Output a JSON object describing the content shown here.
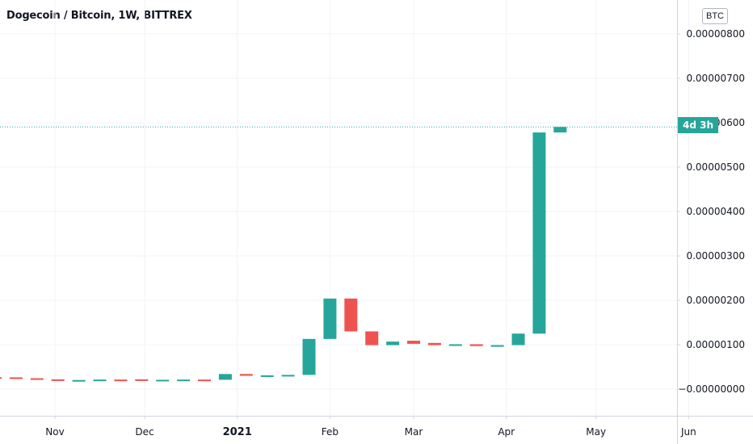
{
  "header": {
    "title": "Dogecoin / Bitcoin, 1W, BITTREX",
    "currency_badge": "BTC",
    "countdown_label": "4d 3h"
  },
  "colors": {
    "up": "#26a69a",
    "down": "#ef5350",
    "grid": "#f0f3fa",
    "price_line": "#26a69a"
  },
  "chart_data": {
    "type": "candlestick",
    "title": "Dogecoin / Bitcoin, 1W, BITTREX",
    "xlabel": "",
    "ylabel": "",
    "ylim": [
      -2e-07,
      8e-07
    ],
    "grid": true,
    "yticks": [
      "0.00000800",
      "0.00000700",
      "0.00000600",
      "0.00000500",
      "0.00000400",
      "0.00000300",
      "0.00000200",
      "0.00000100",
      "0.00000000"
    ],
    "ytick_labels": [
      "0.00000800",
      "0.00000700",
      "0.00000600",
      "0.00000500",
      "0.00000400",
      "0.00000300",
      "0.00000200",
      "0.00000100",
      "−0.00000000"
    ],
    "ytick_values": [
      8e-07,
      7e-07,
      6e-07,
      5e-07,
      4e-07,
      3e-07,
      2e-07,
      1e-07,
      0.0
    ],
    "xticks": [
      {
        "label": "Nov",
        "date": "2020-11-01",
        "year": false
      },
      {
        "label": "Dec",
        "date": "2020-12-01",
        "year": false
      },
      {
        "label": "2021",
        "date": "2021-01-01",
        "year": true
      },
      {
        "label": "Feb",
        "date": "2021-02-01",
        "year": false
      },
      {
        "label": "Mar",
        "date": "2021-03-01",
        "year": false
      },
      {
        "label": "Apr",
        "date": "2021-04-01",
        "year": false
      },
      {
        "label": "May",
        "date": "2021-05-01",
        "year": false
      },
      {
        "label": "Jun",
        "date": "2021-06-01",
        "year": false
      }
    ],
    "last_price": 5.905e-07,
    "candles": [
      {
        "date": "2020-10-12",
        "open": 2.7e-08,
        "close": 2.65e-08
      },
      {
        "date": "2020-10-19",
        "open": 2.65e-08,
        "close": 2.45e-08
      },
      {
        "date": "2020-10-26",
        "open": 2.45e-08,
        "close": 2.2e-08
      },
      {
        "date": "2020-11-02",
        "open": 2.2e-08,
        "close": 1.95e-08
      },
      {
        "date": "2020-11-09",
        "open": 1.95e-08,
        "close": 2.05e-08
      },
      {
        "date": "2020-11-16",
        "open": 2.05e-08,
        "close": 2.15e-08
      },
      {
        "date": "2020-11-23",
        "open": 2.15e-08,
        "close": 2.1e-08
      },
      {
        "date": "2020-11-30",
        "open": 2.2e-08,
        "close": 1.9e-08
      },
      {
        "date": "2020-12-07",
        "open": 1.9e-08,
        "close": 2.1e-08
      },
      {
        "date": "2020-12-14",
        "open": 2.1e-08,
        "close": 2.15e-08
      },
      {
        "date": "2020-12-21",
        "open": 2.15e-08,
        "close": 2.1e-08
      },
      {
        "date": "2020-12-28",
        "open": 2.1e-08,
        "close": 3.4e-08
      },
      {
        "date": "2021-01-04",
        "open": 3.4e-08,
        "close": 3e-08
      },
      {
        "date": "2021-01-11",
        "open": 3e-08,
        "close": 3.1e-08
      },
      {
        "date": "2021-01-18",
        "open": 3.1e-08,
        "close": 3.2e-08
      },
      {
        "date": "2021-01-25",
        "open": 3.2e-08,
        "close": 1.13e-07
      },
      {
        "date": "2021-02-01",
        "open": 1.13e-07,
        "close": 2.04e-07
      },
      {
        "date": "2021-02-08",
        "open": 2.04e-07,
        "close": 1.3e-07
      },
      {
        "date": "2021-02-15",
        "open": 1.3e-07,
        "close": 9.9e-08
      },
      {
        "date": "2021-02-22",
        "open": 9.9e-08,
        "close": 1.07e-07
      },
      {
        "date": "2021-03-01",
        "open": 1.09e-07,
        "close": 1.02e-07
      },
      {
        "date": "2021-03-08",
        "open": 1.04e-07,
        "close": 9.9e-08
      },
      {
        "date": "2021-03-15",
        "open": 9.9e-08,
        "close": 1.01e-07
      },
      {
        "date": "2021-03-22",
        "open": 1.01e-07,
        "close": 9.7e-08
      },
      {
        "date": "2021-03-29",
        "open": 9.7e-08,
        "close": 9.9e-08
      },
      {
        "date": "2021-04-05",
        "open": 9.9e-08,
        "close": 1.25e-07
      },
      {
        "date": "2021-04-12",
        "open": 1.25e-07,
        "close": 5.78e-07
      },
      {
        "date": "2021-04-19",
        "open": 5.78e-07,
        "close": 5.905e-07
      }
    ]
  }
}
